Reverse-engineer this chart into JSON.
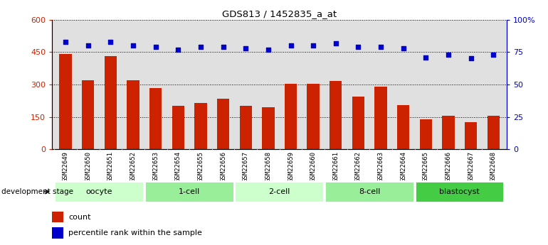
{
  "title": "GDS813 / 1452835_a_at",
  "samples": [
    "GSM22649",
    "GSM22650",
    "GSM22651",
    "GSM22652",
    "GSM22653",
    "GSM22654",
    "GSM22655",
    "GSM22656",
    "GSM22657",
    "GSM22658",
    "GSM22659",
    "GSM22660",
    "GSM22661",
    "GSM22662",
    "GSM22663",
    "GSM22664",
    "GSM22665",
    "GSM22666",
    "GSM22667",
    "GSM22668"
  ],
  "counts": [
    440,
    320,
    430,
    320,
    285,
    200,
    215,
    235,
    200,
    195,
    305,
    305,
    315,
    245,
    290,
    205,
    140,
    155,
    125,
    155
  ],
  "percentiles": [
    83,
    80,
    83,
    80,
    79,
    77,
    79,
    79,
    78,
    77,
    80,
    80,
    82,
    79,
    79,
    78,
    71,
    73,
    70,
    73
  ],
  "groups": [
    {
      "name": "oocyte",
      "start": 0,
      "end": 4,
      "color": "#ccffcc"
    },
    {
      "name": "1-cell",
      "start": 4,
      "end": 8,
      "color": "#99ee99"
    },
    {
      "name": "2-cell",
      "start": 8,
      "end": 12,
      "color": "#ccffcc"
    },
    {
      "name": "8-cell",
      "start": 12,
      "end": 16,
      "color": "#99ee99"
    },
    {
      "name": "blastocyst",
      "start": 16,
      "end": 20,
      "color": "#44cc44"
    }
  ],
  "bar_color": "#cc2200",
  "dot_color": "#0000cc",
  "left_ylim": [
    0,
    600
  ],
  "right_ylim": [
    0,
    100
  ],
  "left_yticks": [
    0,
    150,
    300,
    450,
    600
  ],
  "right_yticks": [
    0,
    25,
    50,
    75,
    100
  ],
  "right_yticklabels": [
    "0",
    "25",
    "50",
    "75",
    "100%"
  ],
  "legend_count_label": "count",
  "legend_pct_label": "percentile rank within the sample",
  "dev_stage_label": "development stage",
  "plot_bg": "#e0e0e0",
  "xticklabel_bg": "#d0d0d0"
}
